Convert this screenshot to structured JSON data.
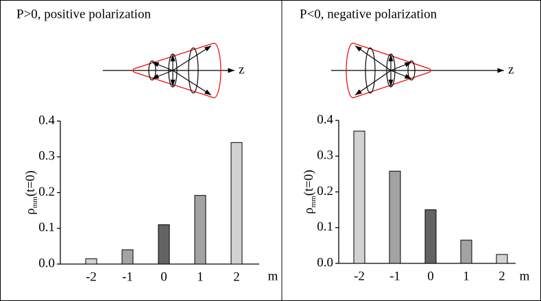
{
  "chart_data": [
    {
      "type": "bar",
      "title": "P>0,  positive polarization",
      "axis_label": "z",
      "ylabel": {
        "symbol": "ρ",
        "subscript": "mm",
        "rest": "(t=0)"
      },
      "xlabel": "m",
      "categories": [
        "-2",
        "-1",
        "0",
        "1",
        "2"
      ],
      "values": [
        0.015,
        0.04,
        0.11,
        0.192,
        0.34
      ],
      "colors": [
        "#d2d2d2",
        "#a3a3a3",
        "#636363",
        "#a3a3a3",
        "#d2d2d2"
      ],
      "ylim": [
        0,
        0.4
      ],
      "yticks": [
        {
          "value": 0,
          "label": "0.0"
        },
        0.1,
        0.2,
        0.3,
        0.4
      ]
    },
    {
      "type": "bar",
      "title": "P<0,  negative polarization",
      "axis_label": "z",
      "ylabel": {
        "symbol": "ρ",
        "subscript": "mm",
        "rest": "(t=0)"
      },
      "xlabel": "m",
      "categories": [
        "-2",
        "-1",
        "0",
        "1",
        "2"
      ],
      "values": [
        0.37,
        0.258,
        0.15,
        0.065,
        0.025
      ],
      "colors": [
        "#d2d2d2",
        "#a3a3a3",
        "#636363",
        "#a3a3a3",
        "#d2d2d2"
      ],
      "ylim": [
        0,
        0.4
      ],
      "yticks": [
        {
          "value": 0,
          "label": "0.0"
        },
        0.1,
        0.2,
        0.3,
        0.4
      ]
    }
  ]
}
